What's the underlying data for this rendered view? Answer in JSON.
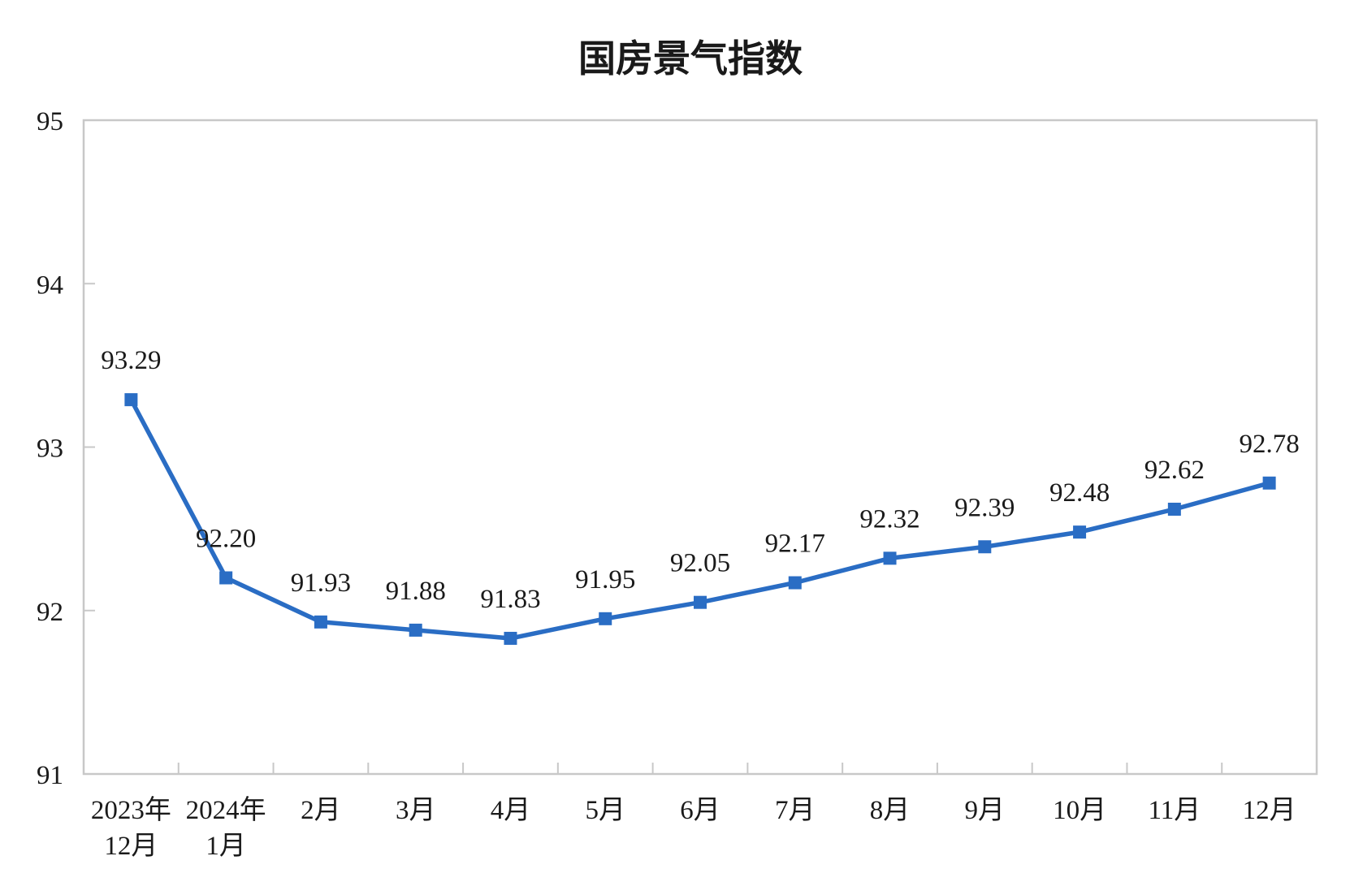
{
  "chart_data": {
    "type": "line",
    "title": "国房景气指数",
    "xlabel": "",
    "ylabel": "",
    "ylim": [
      91,
      95
    ],
    "yticks": [
      91,
      92,
      93,
      94,
      95
    ],
    "grid": false,
    "legend": null,
    "categories": [
      [
        "2023年",
        "12月"
      ],
      [
        "2024年",
        "1月"
      ],
      [
        "2月"
      ],
      [
        "3月"
      ],
      [
        "4月"
      ],
      [
        "5月"
      ],
      [
        "6月"
      ],
      [
        "7月"
      ],
      [
        "8月"
      ],
      [
        "9月"
      ],
      [
        "10月"
      ],
      [
        "11月"
      ],
      [
        "12月"
      ]
    ],
    "series": [
      {
        "name": "国房景气指数",
        "color": "#2a6dc4",
        "marker": "square",
        "values": [
          93.29,
          92.2,
          91.93,
          91.88,
          91.83,
          91.95,
          92.05,
          92.17,
          92.32,
          92.39,
          92.48,
          92.62,
          92.78
        ],
        "labels": [
          "93.29",
          "92.20",
          "91.93",
          "91.88",
          "91.83",
          "91.95",
          "92.05",
          "92.17",
          "92.32",
          "92.39",
          "92.48",
          "92.62",
          "92.78"
        ]
      }
    ]
  },
  "colors": {
    "axis": "#c8c8c8",
    "text": "#1a1a1a",
    "line": "#2a6dc4"
  }
}
